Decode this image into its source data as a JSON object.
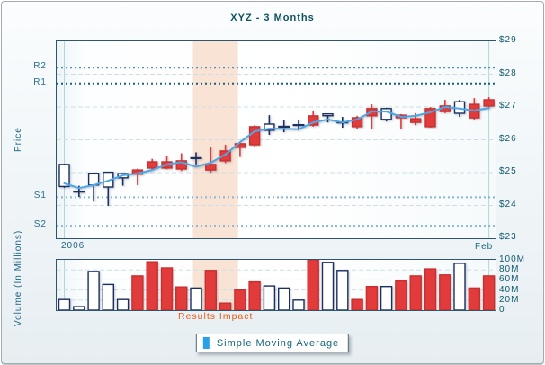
{
  "title": "XYZ - 3 Months",
  "axes": {
    "price_label": "Price",
    "volume_label": "Volume (In Millions)",
    "x_start_label": "2006",
    "x_end_label": "Feb"
  },
  "annotations": {
    "results_impact": "Results Impact"
  },
  "legend": {
    "label": "Simple Moving Average",
    "marker_color": "#2aa0ea"
  },
  "colors": {
    "up_fill": "#ffffff",
    "up_stroke": "#1b2f62",
    "down": "#e23b3b",
    "down_stroke": "#c92f2f",
    "doji": "#1b2f62",
    "sma": "#4da6e8",
    "band": "#f9e3d5",
    "grid": "#ccdfe8",
    "vline": "#b2d6da",
    "plot_border": "#30556a",
    "label_teal": "#1d6480",
    "annotation_orange": "#e65c17"
  },
  "chart_data": [
    {
      "type": "candlestick",
      "title": "XYZ - 3 Months",
      "ylabel": "Price",
      "ylim": [
        23,
        29
      ],
      "grid": "on",
      "gridlines": [
        24,
        25,
        26,
        27,
        28
      ],
      "price_ticks": [
        {
          "label": "$29",
          "value": 29
        },
        {
          "label": "$28",
          "value": 28
        },
        {
          "label": "$27",
          "value": 27
        },
        {
          "label": "$26",
          "value": 26
        },
        {
          "label": "$25",
          "value": 25
        },
        {
          "label": "$24",
          "value": 24
        },
        {
          "label": "$23",
          "value": 23
        }
      ],
      "levels": [
        {
          "label": "R2",
          "value": 28.2,
          "color": "#4a90b8"
        },
        {
          "label": "R1",
          "value": 27.72,
          "color": "#155f80"
        },
        {
          "label": "S1",
          "value": 24.25,
          "color": "#85b6d8"
        },
        {
          "label": "S2",
          "value": 23.38,
          "color": "#85b6d8"
        }
      ],
      "band": {
        "label": "Results Impact",
        "from_index": 9,
        "to_index": 11
      },
      "x_start_label": "2006",
      "x_end_label": "Feb",
      "candles": [
        {
          "o": 24.58,
          "h": 25.27,
          "l": 24.54,
          "c": 25.25,
          "t": "up"
        },
        {
          "o": 24.42,
          "h": 24.6,
          "l": 24.26,
          "c": 24.42,
          "t": "doji"
        },
        {
          "o": 24.62,
          "h": 24.98,
          "l": 24.12,
          "c": 24.98,
          "t": "up"
        },
        {
          "o": 24.56,
          "h": 25.01,
          "l": 23.99,
          "c": 25.01,
          "t": "up"
        },
        {
          "o": 24.84,
          "h": 24.97,
          "l": 24.6,
          "c": 24.97,
          "t": "up"
        },
        {
          "o": 25.08,
          "h": 25.12,
          "l": 24.62,
          "c": 24.95,
          "t": "down"
        },
        {
          "o": 25.33,
          "h": 25.42,
          "l": 25.08,
          "c": 25.14,
          "t": "down"
        },
        {
          "o": 25.33,
          "h": 25.51,
          "l": 25.1,
          "c": 25.14,
          "t": "down"
        },
        {
          "o": 25.36,
          "h": 25.59,
          "l": 25.05,
          "c": 25.11,
          "t": "down"
        },
        {
          "o": 25.44,
          "h": 25.62,
          "l": 25.25,
          "c": 25.44,
          "t": "doji"
        },
        {
          "o": 25.25,
          "h": 25.77,
          "l": 25.0,
          "c": 25.08,
          "t": "down"
        },
        {
          "o": 25.66,
          "h": 25.85,
          "l": 25.29,
          "c": 25.36,
          "t": "down"
        },
        {
          "o": 25.88,
          "h": 25.95,
          "l": 25.48,
          "c": 25.77,
          "t": "down"
        },
        {
          "o": 26.4,
          "h": 26.45,
          "l": 25.8,
          "c": 25.85,
          "t": "down"
        },
        {
          "o": 26.29,
          "h": 26.75,
          "l": 26.15,
          "c": 26.48,
          "t": "up"
        },
        {
          "o": 26.4,
          "h": 26.59,
          "l": 26.23,
          "c": 26.4,
          "t": "doji"
        },
        {
          "o": 26.45,
          "h": 26.62,
          "l": 26.29,
          "c": 26.45,
          "t": "doji"
        },
        {
          "o": 26.73,
          "h": 26.89,
          "l": 26.4,
          "c": 26.45,
          "t": "down"
        },
        {
          "o": 26.74,
          "h": 26.8,
          "l": 26.53,
          "c": 26.79,
          "t": "up"
        },
        {
          "o": 26.53,
          "h": 26.7,
          "l": 26.37,
          "c": 26.53,
          "t": "doji"
        },
        {
          "o": 26.67,
          "h": 26.73,
          "l": 26.34,
          "c": 26.4,
          "t": "down"
        },
        {
          "o": 26.95,
          "h": 27.08,
          "l": 26.34,
          "c": 26.73,
          "t": "down"
        },
        {
          "o": 26.62,
          "h": 26.98,
          "l": 26.56,
          "c": 26.95,
          "t": "up"
        },
        {
          "o": 26.75,
          "h": 26.78,
          "l": 26.34,
          "c": 26.67,
          "t": "down"
        },
        {
          "o": 26.64,
          "h": 26.81,
          "l": 26.45,
          "c": 26.53,
          "t": "down"
        },
        {
          "o": 26.95,
          "h": 27.0,
          "l": 26.37,
          "c": 26.4,
          "t": "down"
        },
        {
          "o": 27.03,
          "h": 27.22,
          "l": 26.81,
          "c": 26.86,
          "t": "down"
        },
        {
          "o": 26.81,
          "h": 27.22,
          "l": 26.7,
          "c": 27.16,
          "t": "up"
        },
        {
          "o": 27.08,
          "h": 27.27,
          "l": 26.62,
          "c": 26.67,
          "t": "down"
        },
        {
          "o": 27.22,
          "h": 27.3,
          "l": 26.98,
          "c": 27.03,
          "t": "down"
        }
      ],
      "sma_name": "Simple Moving Average",
      "sma": [
        24.67,
        24.53,
        24.62,
        24.75,
        24.92,
        24.97,
        25.08,
        25.25,
        25.32,
        25.18,
        25.3,
        25.55,
        25.93,
        26.26,
        26.34,
        26.34,
        26.32,
        26.53,
        26.62,
        26.53,
        26.62,
        26.86,
        26.86,
        26.7,
        26.73,
        26.84,
        27.0,
        26.95,
        26.89,
        26.97
      ]
    },
    {
      "type": "bar",
      "ylabel": "Volume (In Millions)",
      "ylim": [
        0,
        100
      ],
      "grid": "on",
      "gridlines": [
        20,
        40,
        60,
        80
      ],
      "volume_ticks": [
        {
          "label": "100M",
          "value": 100
        },
        {
          "label": "80M",
          "value": 80
        },
        {
          "label": "60M",
          "value": 60
        },
        {
          "label": "40M",
          "value": 40
        },
        {
          "label": "20M",
          "value": 20
        },
        {
          "label": "0",
          "value": 0
        }
      ],
      "values": [
        {
          "v": 21,
          "d": "up"
        },
        {
          "v": 7,
          "d": "up"
        },
        {
          "v": 77,
          "d": "up"
        },
        {
          "v": 51,
          "d": "up"
        },
        {
          "v": 21,
          "d": "up"
        },
        {
          "v": 68,
          "d": "down"
        },
        {
          "v": 96,
          "d": "down"
        },
        {
          "v": 84,
          "d": "down"
        },
        {
          "v": 46,
          "d": "down"
        },
        {
          "v": 44,
          "d": "up"
        },
        {
          "v": 79,
          "d": "down"
        },
        {
          "v": 14,
          "d": "down"
        },
        {
          "v": 40,
          "d": "down"
        },
        {
          "v": 56,
          "d": "down"
        },
        {
          "v": 48,
          "d": "up"
        },
        {
          "v": 44,
          "d": "up"
        },
        {
          "v": 20,
          "d": "up"
        },
        {
          "v": 100,
          "d": "down"
        },
        {
          "v": 95,
          "d": "up"
        },
        {
          "v": 79,
          "d": "up"
        },
        {
          "v": 21,
          "d": "down"
        },
        {
          "v": 47,
          "d": "down"
        },
        {
          "v": 47,
          "d": "up"
        },
        {
          "v": 58,
          "d": "down"
        },
        {
          "v": 68,
          "d": "down"
        },
        {
          "v": 82,
          "d": "down"
        },
        {
          "v": 70,
          "d": "down"
        },
        {
          "v": 93,
          "d": "up"
        },
        {
          "v": 44,
          "d": "down"
        },
        {
          "v": 68,
          "d": "down"
        }
      ]
    }
  ]
}
